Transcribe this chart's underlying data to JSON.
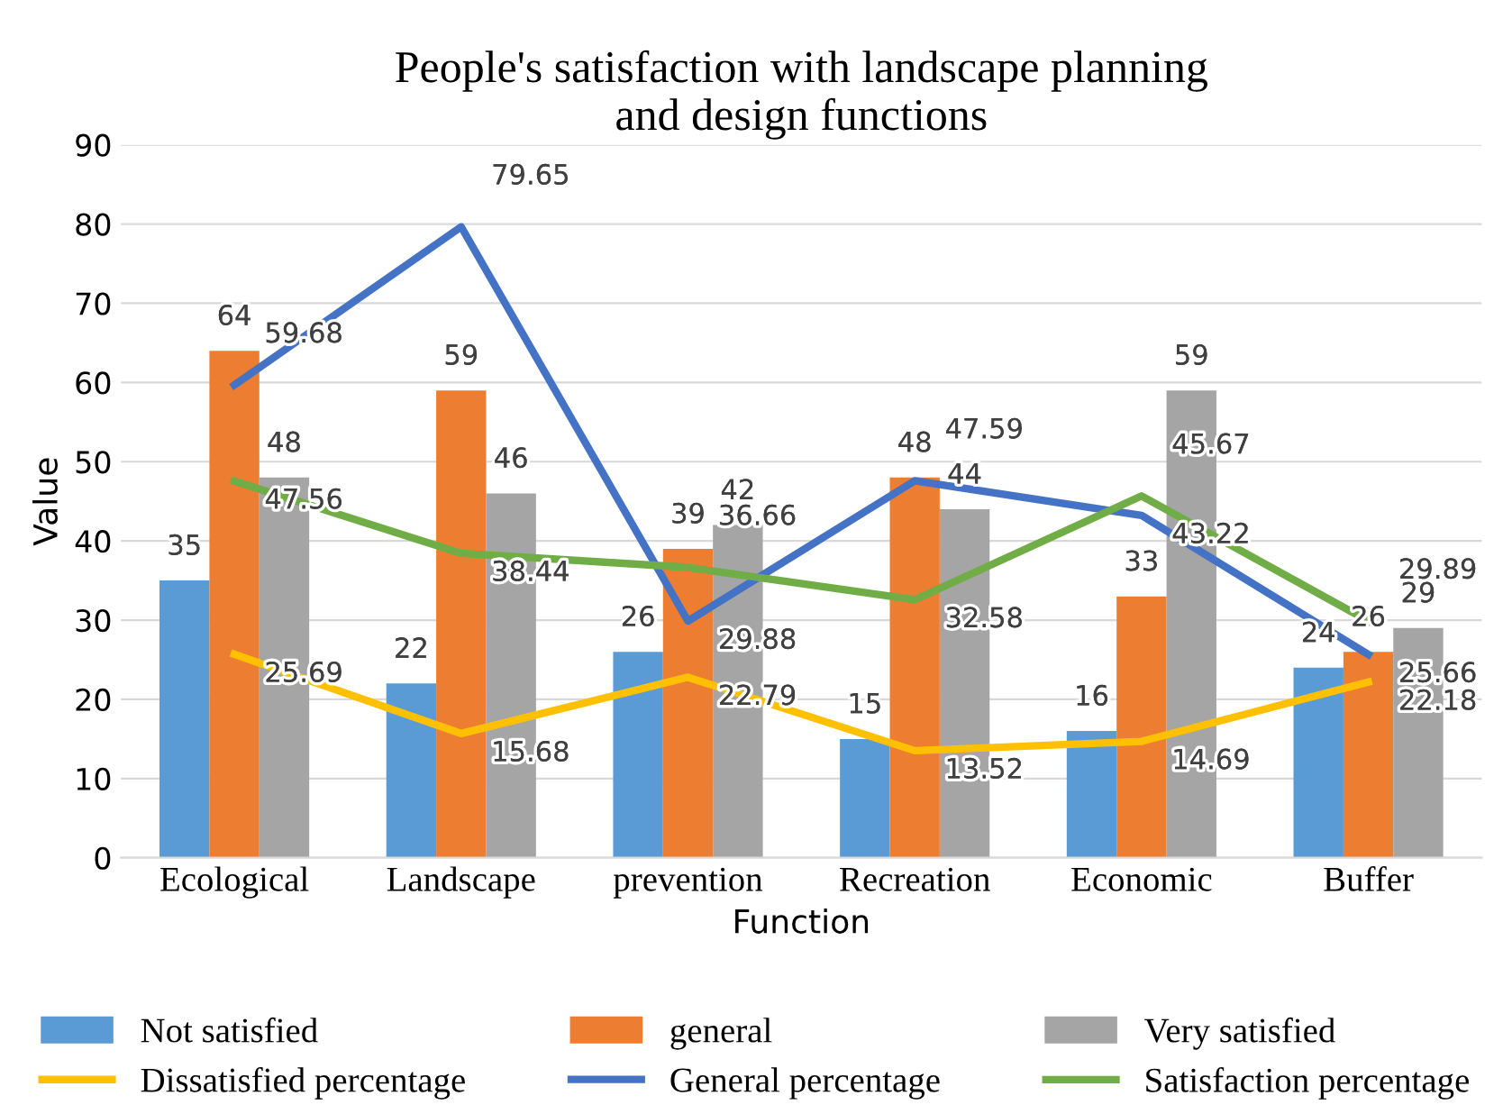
{
  "chart_data": {
    "type": "bar",
    "title": "People's satisfaction with landscape planning\nand design functions",
    "xlabel": "Function",
    "ylabel": "Value",
    "categories": [
      "Ecological",
      "Landscape",
      "prevention",
      "Recreation",
      "Economic",
      "Buffer"
    ],
    "series": [
      {
        "name": "Not satisfied",
        "color": "#5b9bd5",
        "values": [
          35,
          22,
          26,
          15,
          16,
          24
        ]
      },
      {
        "name": "general",
        "color": "#ed7d31",
        "values": [
          64,
          59,
          39,
          48,
          33,
          26
        ]
      },
      {
        "name": "Very satisfied",
        "color": "#a5a5a5",
        "values": [
          48,
          46,
          42,
          44,
          59,
          29
        ]
      },
      {
        "name": "Dissatisfied percentage",
        "type": "line",
        "color": "#ffc000",
        "values": [
          25.69,
          15.68,
          22.79,
          13.52,
          14.69,
          22.18
        ]
      },
      {
        "name": "General percentage",
        "type": "line",
        "color": "#4472c4",
        "values": [
          59.68,
          79.65,
          29.88,
          47.59,
          43.22,
          25.66
        ]
      },
      {
        "name": "Satisfaction percentage",
        "type": "line",
        "color": "#70ad47",
        "values": [
          47.56,
          38.44,
          36.66,
          32.58,
          45.67,
          29.89
        ]
      }
    ],
    "ylim": [
      0,
      90
    ],
    "yticks": [
      0,
      10,
      20,
      30,
      40,
      50,
      60,
      70,
      80,
      90
    ],
    "grid": "y",
    "legend": "bottom",
    "data_labels": true
  }
}
